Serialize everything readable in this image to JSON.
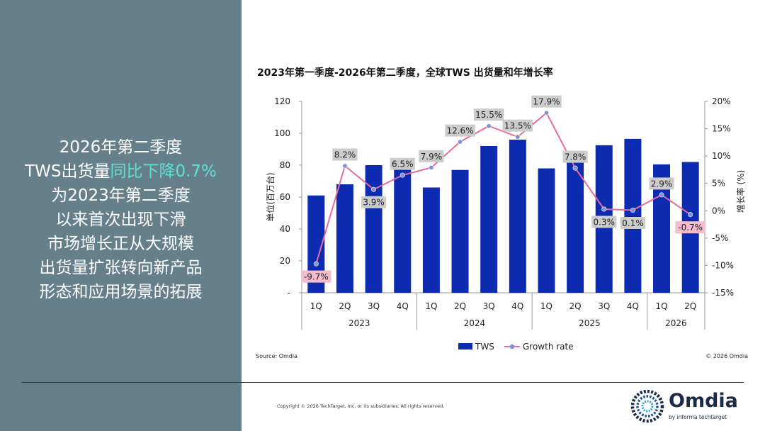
{
  "left_panel": {
    "lines": [
      {
        "pre": "2026年第二季度",
        "hl": ""
      },
      {
        "pre": "TWS出货量",
        "hl": "同比下降0.7%"
      },
      {
        "pre": "为2023年第二季度",
        "hl": ""
      },
      {
        "pre": "以来首次出现下滑",
        "hl": ""
      },
      {
        "pre": "市场增长正从大规模",
        "hl": ""
      },
      {
        "pre": "出货量扩张转向新产品",
        "hl": ""
      },
      {
        "pre": "形态和应用场景的拓展",
        "hl": ""
      }
    ],
    "bg_color": "#65808a",
    "highlight_color": "#5fe0d6"
  },
  "chart_data": {
    "type": "bar",
    "title": "2023年第一季度-2026年第二季度，全球TWS 出货量和年增长率",
    "categories": [
      "1Q",
      "2Q",
      "3Q",
      "4Q",
      "1Q",
      "2Q",
      "3Q",
      "4Q",
      "1Q",
      "2Q",
      "3Q",
      "4Q",
      "1Q",
      "2Q"
    ],
    "years": [
      {
        "label": "2023",
        "span": 4
      },
      {
        "label": "2024",
        "span": 4
      },
      {
        "label": "2025",
        "span": 4
      },
      {
        "label": "2026",
        "span": 2
      }
    ],
    "series": [
      {
        "name": "TWS",
        "kind": "bar",
        "axis": "left",
        "color": "#0d2bb0",
        "values": [
          61,
          68,
          80,
          78,
          66,
          77,
          92,
          96,
          78,
          82,
          92.5,
          96.5,
          80.5,
          82
        ]
      },
      {
        "name": "Growth rate",
        "kind": "line",
        "axis": "right",
        "color": "#e86a9a",
        "values": [
          -9.7,
          8.2,
          3.9,
          6.5,
          7.9,
          12.6,
          15.5,
          13.5,
          17.9,
          7.8,
          0.3,
          0.1,
          2.9,
          -0.7
        ],
        "labels": [
          "-9.7%",
          "8.2%",
          "3.9%",
          "6.5%",
          "7.9%",
          "12.6%",
          "15.5%",
          "13.5%",
          "17.9%",
          "7.8%",
          "0.3%",
          "0.1%",
          "2.9%",
          "-0.7%"
        ]
      }
    ],
    "ylabel": "单位(百万台)",
    "y2label": "增长率 (%)",
    "ylim": [
      0,
      120
    ],
    "y2lim": [
      -15,
      20
    ],
    "yticks": [
      "-",
      "20",
      "40",
      "60",
      "80",
      "100",
      "120"
    ],
    "y2ticks": [
      "-15%",
      "-10%",
      "-5%",
      "0%",
      "5%",
      "10%",
      "15%",
      "20%"
    ],
    "legend_position": "bottom",
    "grid": false
  },
  "source": "Source: Omdia",
  "chart_copyright": "© 2026 Omdia",
  "footer": {
    "copyright": "Copyright © 2026 TechTarget, Inc. or its subsidiaries. All rights reserved."
  },
  "brand": {
    "name": "Omdia",
    "tagline": "by informa techtarget",
    "icon": "omdia-logo-icon"
  }
}
